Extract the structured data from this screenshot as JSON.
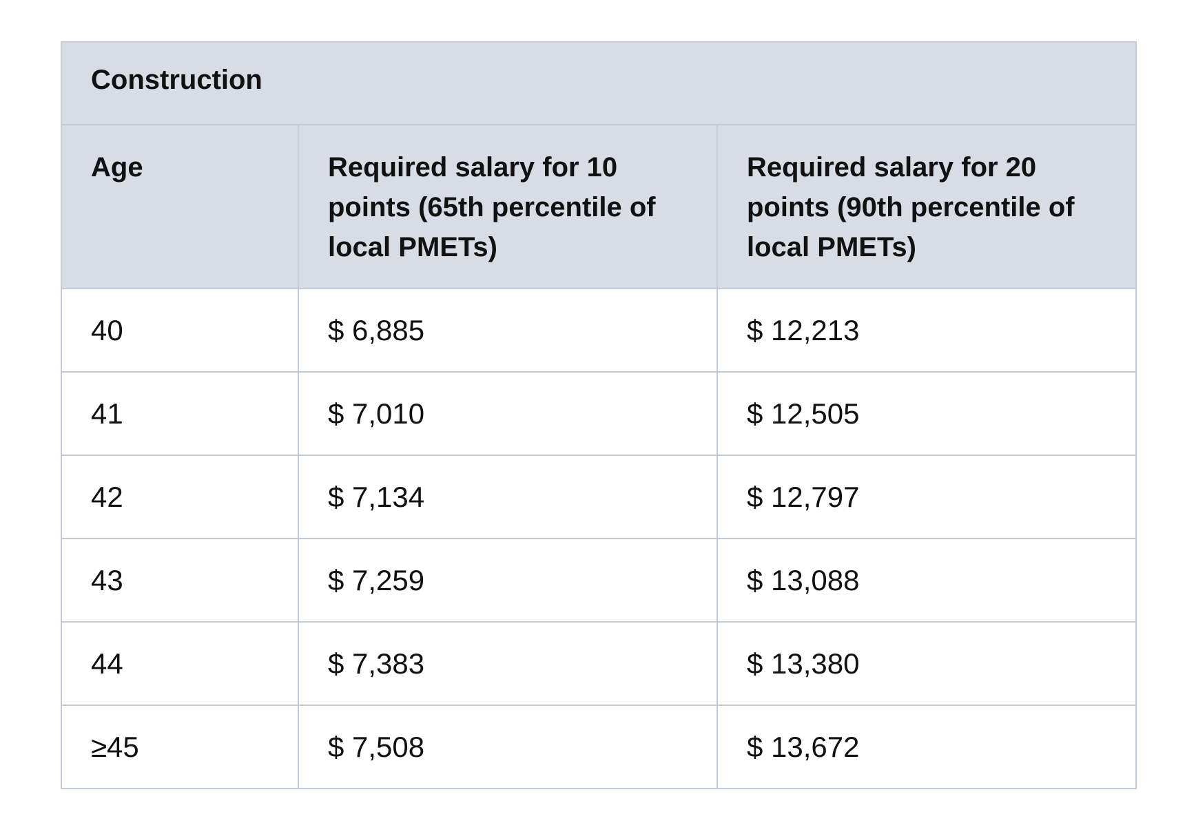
{
  "table": {
    "title": "Construction",
    "headers": [
      "Age",
      "Required salary for 10 points (65th percentile of local PMETs)",
      "Required salary for 20 points (90th percentile of local PMETs)"
    ],
    "rows": [
      [
        "40",
        "$ 6,885",
        "$ 12,213"
      ],
      [
        "41",
        "$ 7,010",
        "$ 12,505"
      ],
      [
        "42",
        "$ 7,134",
        "$ 12,797"
      ],
      [
        "43",
        "$ 7,259",
        "$ 13,088"
      ],
      [
        "44",
        "$ 7,383",
        "$ 13,380"
      ],
      [
        "≥45",
        "$ 7,508",
        "$ 13,672"
      ]
    ]
  },
  "colors": {
    "header_background": "#d8dce5",
    "border": "#c3cad4",
    "text": "#111111"
  }
}
